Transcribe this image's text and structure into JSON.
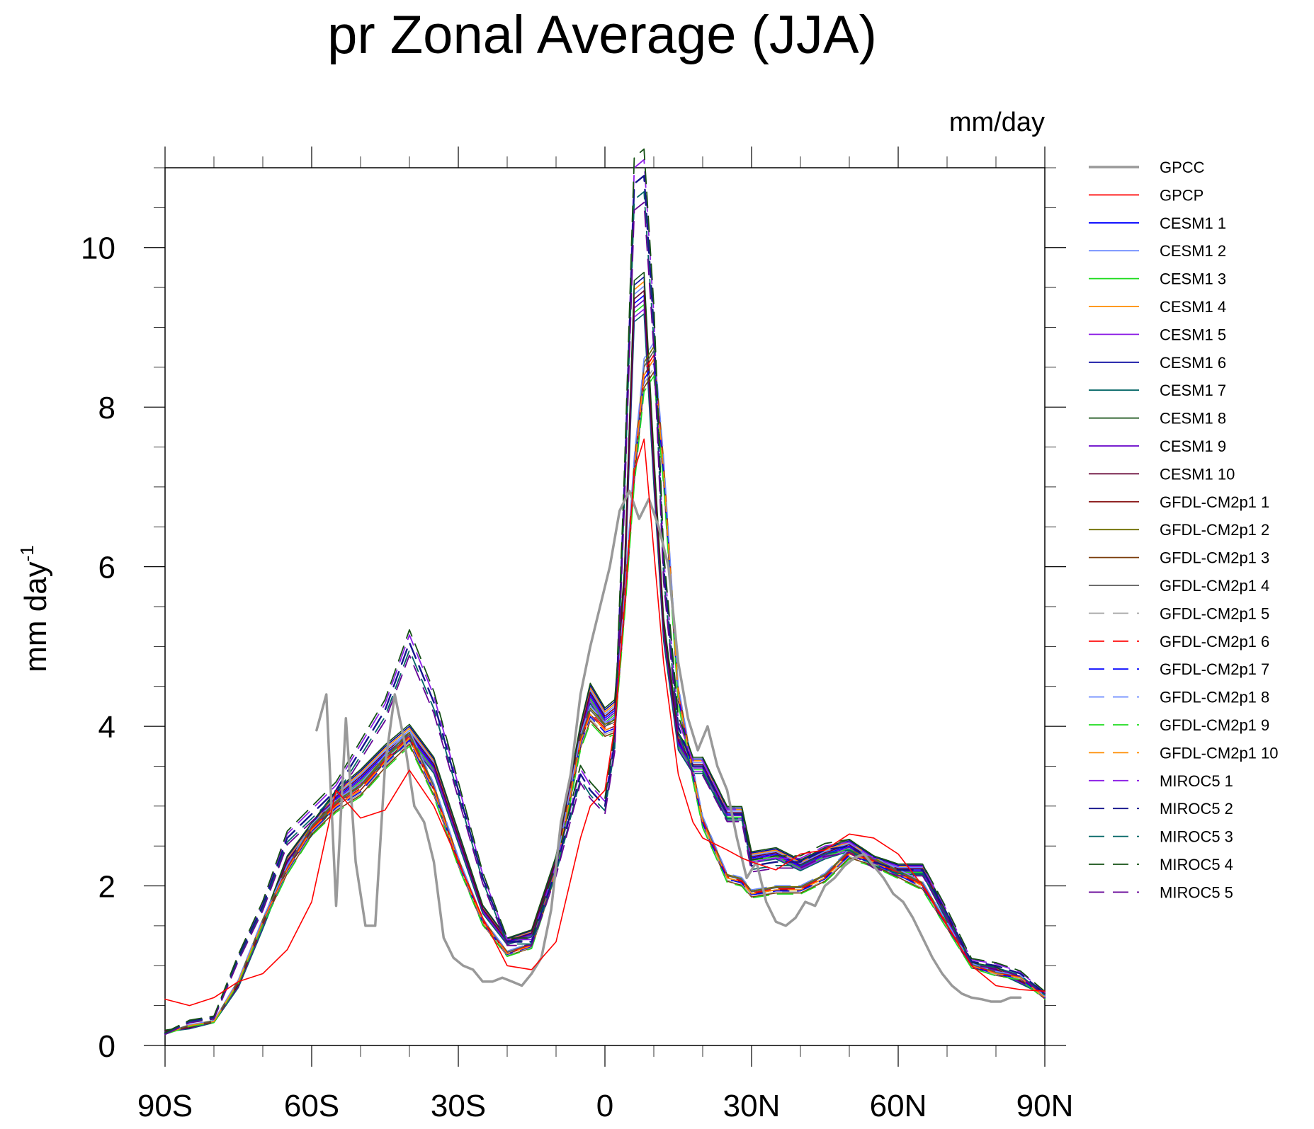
{
  "chart_data": {
    "type": "line",
    "title": "pr Zonal Average (JJA)",
    "units_label": "mm/day",
    "ylabel": "mm day",
    "ylabel_superscript": "-1",
    "xlabel": "",
    "xlim": [
      -90,
      90
    ],
    "ylim": [
      0,
      11
    ],
    "x_ticks": [
      -90,
      -60,
      -30,
      0,
      30,
      60,
      90
    ],
    "x_tick_labels": [
      "90S",
      "60S",
      "30S",
      "0",
      "30N",
      "60N",
      "90N"
    ],
    "y_ticks": [
      0,
      2,
      4,
      6,
      8,
      10
    ],
    "y_tick_labels": [
      "0",
      "2",
      "4",
      "6",
      "8",
      "10"
    ],
    "legend_position": "right",
    "x": [
      -90,
      -85,
      -80,
      -75,
      -70,
      -65,
      -60,
      -55,
      -50,
      -45,
      -40,
      -35,
      -30,
      -25,
      -20,
      -15,
      -10,
      -5,
      -3,
      0,
      2,
      4,
      6,
      8,
      10,
      12,
      15,
      18,
      20,
      25,
      28,
      30,
      35,
      40,
      45,
      50,
      55,
      60,
      65,
      70,
      75,
      80,
      85,
      90
    ],
    "series": [
      {
        "name": "GPCC",
        "color": "#999999",
        "dash": "solid",
        "width": 3.5,
        "x": [
          -59,
          -57,
          -55,
          -53,
          -51,
          -49,
          -47,
          -45,
          -43,
          -41,
          -39,
          -37,
          -35,
          -33,
          -31,
          -29,
          -27,
          -25,
          -23,
          -21,
          -19,
          -17,
          -15,
          -13,
          -11,
          -9,
          -7,
          -5,
          -3,
          -1,
          1,
          3,
          5,
          7,
          9,
          11,
          13,
          15,
          17,
          19,
          21,
          23,
          25,
          27,
          29,
          31,
          33,
          35,
          37,
          39,
          41,
          43,
          45,
          47,
          49,
          51,
          53,
          55,
          57,
          59,
          61,
          63,
          65,
          67,
          69,
          71,
          73,
          75,
          77,
          79,
          81,
          83,
          85
        ],
        "values": [
          3.95,
          4.4,
          1.75,
          4.1,
          2.3,
          1.5,
          1.5,
          3.5,
          4.4,
          3.8,
          3.0,
          2.8,
          2.3,
          1.35,
          1.1,
          1.0,
          0.95,
          0.8,
          0.8,
          0.85,
          0.8,
          0.75,
          0.9,
          1.1,
          1.7,
          2.8,
          3.4,
          4.4,
          5.0,
          5.5,
          6.0,
          6.7,
          6.95,
          6.6,
          6.85,
          6.5,
          6.0,
          4.8,
          4.1,
          3.7,
          4.0,
          3.5,
          3.2,
          2.6,
          2.1,
          2.3,
          1.8,
          1.55,
          1.5,
          1.6,
          1.8,
          1.75,
          2.0,
          2.1,
          2.25,
          2.35,
          2.4,
          2.25,
          2.1,
          1.9,
          1.8,
          1.6,
          1.35,
          1.1,
          0.9,
          0.75,
          0.65,
          0.6,
          0.58,
          0.55,
          0.55,
          0.6,
          0.6
        ]
      },
      {
        "name": "GPCP",
        "color": "#ff0000",
        "dash": "solid",
        "width": 1.6,
        "values": [
          0.58,
          0.5,
          0.6,
          0.8,
          0.9,
          1.2,
          1.8,
          3.2,
          2.85,
          2.95,
          3.45,
          3.0,
          2.3,
          1.6,
          1.0,
          0.95,
          1.3,
          2.6,
          3.0,
          3.2,
          4.0,
          5.5,
          7.2,
          7.6,
          6.2,
          4.8,
          3.4,
          2.8,
          2.6,
          2.45,
          2.35,
          2.3,
          2.2,
          2.4,
          2.45,
          2.65,
          2.6,
          2.4,
          2.0,
          1.5,
          1.0,
          0.75,
          0.7,
          0.68
        ]
      },
      {
        "name": "CESM1 1",
        "color": "#0000ff",
        "dash": "solid",
        "width": 1.6,
        "group": "A",
        "offset": 0.0
      },
      {
        "name": "CESM1 2",
        "color": "#6e8cff",
        "dash": "solid",
        "width": 1.6,
        "group": "A",
        "offset": 0.02
      },
      {
        "name": "CESM1 3",
        "color": "#1edc1e",
        "dash": "solid",
        "width": 1.6,
        "group": "A",
        "offset": -0.02
      },
      {
        "name": "CESM1 4",
        "color": "#ff8c00",
        "dash": "solid",
        "width": 1.6,
        "group": "A",
        "offset": 0.03
      },
      {
        "name": "CESM1 5",
        "color": "#8c1ee6",
        "dash": "solid",
        "width": 1.6,
        "group": "A",
        "offset": -0.03
      },
      {
        "name": "CESM1 6",
        "color": "#0a0aa0",
        "dash": "solid",
        "width": 1.6,
        "group": "A",
        "offset": 0.04
      },
      {
        "name": "CESM1 7",
        "color": "#006464",
        "dash": "solid",
        "width": 1.6,
        "group": "A",
        "offset": -0.04
      },
      {
        "name": "CESM1 8",
        "color": "#145014",
        "dash": "solid",
        "width": 1.6,
        "group": "A",
        "offset": 0.05
      },
      {
        "name": "CESM1 9",
        "color": "#6400c8",
        "dash": "solid",
        "width": 1.6,
        "group": "A",
        "offset": -0.01
      },
      {
        "name": "CESM1 10",
        "color": "#640032",
        "dash": "solid",
        "width": 1.6,
        "group": "A",
        "offset": 0.01
      },
      {
        "name": "GFDL-CM2p1 1",
        "color": "#8b1a1a",
        "dash": "solid",
        "width": 1.6,
        "group": "B",
        "offset": 0.0
      },
      {
        "name": "GFDL-CM2p1 2",
        "color": "#6e6e00",
        "dash": "solid",
        "width": 1.6,
        "group": "B",
        "offset": 0.03
      },
      {
        "name": "GFDL-CM2p1 3",
        "color": "#7a3c0a",
        "dash": "solid",
        "width": 1.6,
        "group": "B",
        "offset": -0.03
      },
      {
        "name": "GFDL-CM2p1 4",
        "color": "#5a5a5a",
        "dash": "solid",
        "width": 1.6,
        "group": "B",
        "offset": 0.02
      },
      {
        "name": "GFDL-CM2p1 5",
        "color": "#aaaaaa",
        "dash": "dashed",
        "width": 1.6,
        "group": "B",
        "offset": -0.02
      },
      {
        "name": "GFDL-CM2p1 6",
        "color": "#ff0000",
        "dash": "dashed",
        "width": 1.6,
        "group": "B",
        "offset": 0.01
      },
      {
        "name": "GFDL-CM2p1 7",
        "color": "#0000ff",
        "dash": "dashed",
        "width": 1.6,
        "group": "B",
        "offset": -0.01
      },
      {
        "name": "GFDL-CM2p1 8",
        "color": "#6e8cff",
        "dash": "dashed",
        "width": 1.6,
        "group": "B",
        "offset": 0.04
      },
      {
        "name": "GFDL-CM2p1 9",
        "color": "#1edc1e",
        "dash": "dashed",
        "width": 1.6,
        "group": "B",
        "offset": -0.04
      },
      {
        "name": "GFDL-CM2p1 10",
        "color": "#ff8c00",
        "dash": "dashed",
        "width": 1.6,
        "group": "B",
        "offset": 0.0
      },
      {
        "name": "MIROC5 1",
        "color": "#8c1ee6",
        "dash": "dashed",
        "width": 1.8,
        "group": "C",
        "offset": 0.03
      },
      {
        "name": "MIROC5 2",
        "color": "#14148c",
        "dash": "dashed",
        "width": 2.4,
        "group": "C",
        "offset": 0.0
      },
      {
        "name": "MIROC5 3",
        "color": "#006464",
        "dash": "dashed",
        "width": 1.8,
        "group": "C",
        "offset": -0.03
      },
      {
        "name": "MIROC5 4",
        "color": "#145014",
        "dash": "dashed",
        "width": 1.8,
        "group": "C",
        "offset": 0.05
      },
      {
        "name": "MIROC5 5",
        "color": "#640096",
        "dash": "dashed",
        "width": 1.8,
        "group": "C",
        "offset": -0.05
      }
    ],
    "group_profiles": {
      "A": [
        0.18,
        0.22,
        0.3,
        0.75,
        1.5,
        2.3,
        2.7,
        3.1,
        3.35,
        3.65,
        3.9,
        3.5,
        2.6,
        1.7,
        1.3,
        1.4,
        2.3,
        3.9,
        4.4,
        4.1,
        4.2,
        5.8,
        9.3,
        9.4,
        7.2,
        5.2,
        3.8,
        3.5,
        3.5,
        2.9,
        2.9,
        2.35,
        2.4,
        2.25,
        2.4,
        2.5,
        2.3,
        2.2,
        2.2,
        1.6,
        1.0,
        0.95,
        0.8,
        0.65
      ],
      "B": [
        0.15,
        0.25,
        0.3,
        0.8,
        1.55,
        2.2,
        2.7,
        3.0,
        3.2,
        3.55,
        3.85,
        3.2,
        2.3,
        1.55,
        1.15,
        1.25,
        2.2,
        3.8,
        4.15,
        3.95,
        4.0,
        5.5,
        7.2,
        8.4,
        8.6,
        7.2,
        4.4,
        3.4,
        2.8,
        2.1,
        2.05,
        1.9,
        1.95,
        1.95,
        2.1,
        2.4,
        2.3,
        2.15,
        2.0,
        1.5,
        1.0,
        0.9,
        0.85,
        0.6
      ],
      "C": [
        0.15,
        0.3,
        0.35,
        1.1,
        1.75,
        2.6,
        2.9,
        3.2,
        3.7,
        4.2,
        5.05,
        4.3,
        3.2,
        2.1,
        1.3,
        1.3,
        2.2,
        3.4,
        3.2,
        3.0,
        3.8,
        7.0,
        10.8,
        10.9,
        9.0,
        6.0,
        4.0,
        3.5,
        3.5,
        2.9,
        2.9,
        2.25,
        2.3,
        2.3,
        2.45,
        2.5,
        2.3,
        2.2,
        2.2,
        1.65,
        1.05,
        1.0,
        0.9,
        0.65
      ]
    }
  }
}
